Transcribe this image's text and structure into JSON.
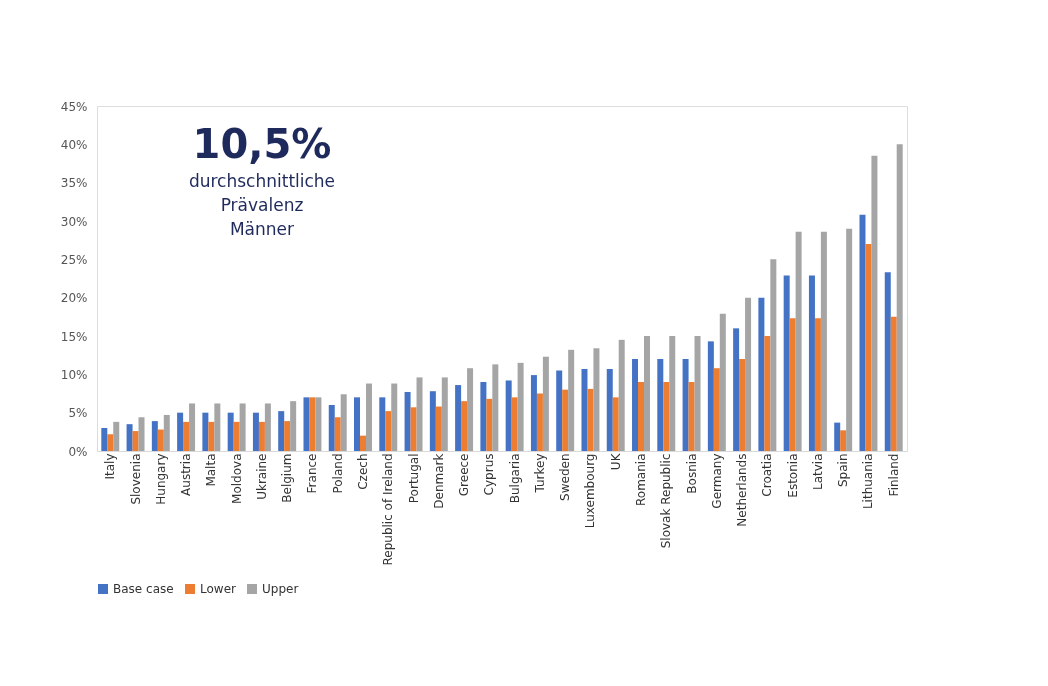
{
  "chart_data": {
    "type": "bar",
    "categories": [
      "Italy",
      "Slovenia",
      "Hungary",
      "Austria",
      "Malta",
      "Moldova",
      "Ukraine",
      "Belgium",
      "France",
      "Poland",
      "Czech",
      "Republic of Ireland",
      "Portugal",
      "Denmark",
      "Greece",
      "Cyprus",
      "Bulgaria",
      "Turkey",
      "Sweden",
      "Luxembourg",
      "UK",
      "Romania",
      "Slovak Republic",
      "Bosnia",
      "Germany",
      "Netherlands",
      "Croatia",
      "Estonia",
      "Latvia",
      "Spain",
      "Lithuania",
      "Finland"
    ],
    "series": [
      {
        "name": "Base case",
        "color": "#4472c4",
        "values": [
          3.0,
          3.5,
          3.9,
          5.0,
          5.0,
          5.0,
          5.0,
          5.2,
          7.0,
          6.0,
          7.0,
          7.0,
          7.7,
          7.8,
          8.6,
          9.0,
          9.2,
          9.9,
          10.5,
          10.7,
          10.7,
          12.0,
          12.0,
          12.0,
          14.3,
          16.0,
          20.0,
          22.9,
          22.9,
          3.7,
          30.8,
          23.3
        ]
      },
      {
        "name": "Lower",
        "color": "#ed7d31",
        "values": [
          2.2,
          2.6,
          2.8,
          3.8,
          3.8,
          3.8,
          3.8,
          3.9,
          7.0,
          4.4,
          2.0,
          5.2,
          5.7,
          5.8,
          6.5,
          6.8,
          7.0,
          7.5,
          8.0,
          8.1,
          7.0,
          9.0,
          9.0,
          9.0,
          10.8,
          12.0,
          15.0,
          17.3,
          17.3,
          2.7,
          27.0,
          17.5
        ]
      },
      {
        "name": "Upper",
        "color": "#a5a5a5",
        "values": [
          3.8,
          4.4,
          4.7,
          6.2,
          6.2,
          6.2,
          6.2,
          6.5,
          7.0,
          7.4,
          8.8,
          8.8,
          9.6,
          9.6,
          10.8,
          11.3,
          11.5,
          12.3,
          13.2,
          13.4,
          14.5,
          15.0,
          15.0,
          15.0,
          17.9,
          20.0,
          25.0,
          28.6,
          28.6,
          29.0,
          38.5,
          40.0
        ]
      }
    ],
    "ylim": [
      0,
      45
    ],
    "yticks": [
      {
        "value": 0,
        "label": "0%"
      },
      {
        "value": 5,
        "label": "5%"
      },
      {
        "value": 10,
        "label": "10%"
      },
      {
        "value": 15,
        "label": "15%"
      },
      {
        "value": 20,
        "label": "20%"
      },
      {
        "value": 25,
        "label": "25%"
      },
      {
        "value": 30,
        "label": "30%"
      },
      {
        "value": 35,
        "label": "35%"
      },
      {
        "value": 40,
        "label": "40%"
      },
      {
        "value": 45,
        "label": "45%"
      }
    ],
    "annotations": [
      "10,5%",
      "durchschnittliche Prävalenz Männer"
    ],
    "grid": false,
    "legend": "bottom"
  }
}
